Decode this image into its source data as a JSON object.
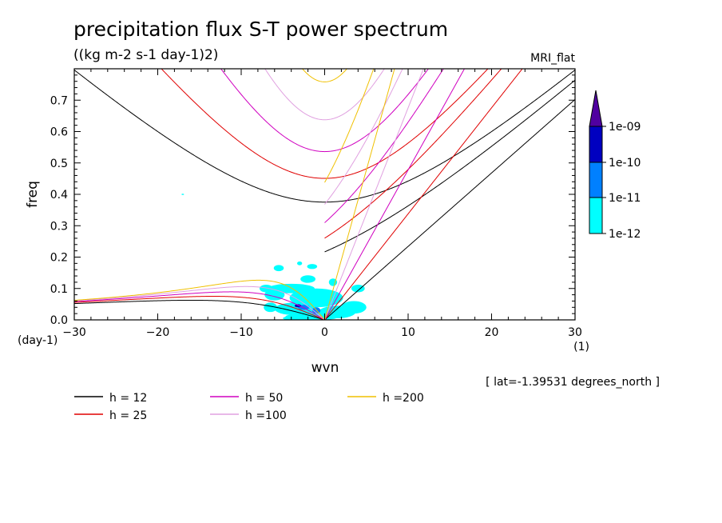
{
  "chart_data": {
    "type": "contour",
    "title": "precipitation flux S-T power spectrum",
    "subtitle": "((kg m-2 s-1 day-1)2)",
    "model_label": "MRI_flat",
    "xlabel": "wvn",
    "ylabel": "freq",
    "x_unit_label": "(1)",
    "y_unit_label": "(day-1)",
    "xlim": [
      -30,
      30
    ],
    "ylim": [
      0,
      0.8
    ],
    "x_ticks": [
      -30,
      -20,
      -10,
      0,
      10,
      20,
      30
    ],
    "y_ticks": [
      0.0,
      0.1,
      0.2,
      0.3,
      0.4,
      0.5,
      0.6,
      0.7
    ],
    "x_tick_labels": [
      "−30",
      "−20",
      "−10",
      "0",
      "10",
      "20",
      "30"
    ],
    "y_tick_labels": [
      "0.0",
      "0.1",
      "0.2",
      "0.3",
      "0.4",
      "0.5",
      "0.6",
      "0.7"
    ],
    "footnote": "[ lat=-1.39531 degrees_north ]",
    "colorbar": {
      "levels": [
        "1e-12",
        "1e-11",
        "1e-10",
        "1e-09"
      ],
      "colors": [
        "#00ffff",
        "#0080ff",
        "#0000c0",
        "#5000a0"
      ]
    },
    "series": [
      {
        "name": "h = 12",
        "h": 12,
        "color": "#000000"
      },
      {
        "name": "h = 25",
        "h": 25,
        "color": "#e00000"
      },
      {
        "name": "h = 50",
        "h": 50,
        "color": "#d000c0"
      },
      {
        "name": "h =100",
        "h": 100,
        "color": "#e0a0e0"
      },
      {
        "name": "h =200",
        "h": 200,
        "color": "#f0c000"
      }
    ],
    "shaded_regions": [
      {
        "level": "1e-12",
        "x": [
          -6,
          4
        ],
        "y": [
          0.0,
          0.12
        ]
      },
      {
        "level": "1e-11",
        "x": [
          -3.5,
          0
        ],
        "y": [
          0.02,
          0.06
        ]
      },
      {
        "level": "1e-10",
        "x": [
          -3.5,
          -2.5
        ],
        "y": [
          0.04,
          0.05
        ]
      }
    ]
  }
}
